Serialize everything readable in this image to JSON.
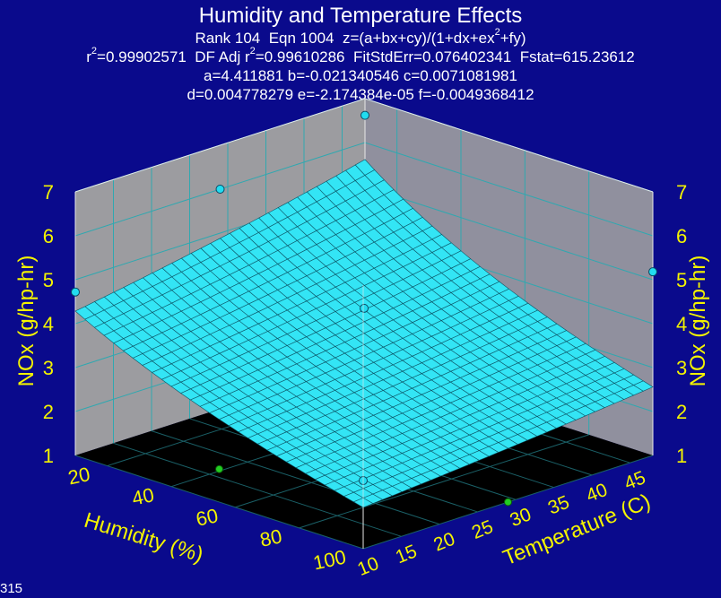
{
  "title": "Humidity and Temperature Effects",
  "rank_label": "Rank 104",
  "eqn_label": "Eqn 1004",
  "equation_prefix": "z=(a+bx+cy)/(1+dx+ex",
  "equation_exp": "2",
  "equation_suffix": "+fy)",
  "r2_label": "r",
  "r2_value": "=0.99902571",
  "adj_label": "DF Adj r",
  "adj_value": "=0.99610286",
  "fit_std_err": "FitStdErr=0.076402341",
  "fstat": "Fstat=615.23612",
  "coeffs_line1": "a=4.411881 b=-0.021340546 c=0.0071081981",
  "coeffs_line2": "d=0.004778279 e=-2.174384e-05 f=-0.0049368412",
  "corner_id": "315",
  "colors": {
    "background": "#0a0a8c",
    "wall": "#9c9ca0",
    "floor": "#000000",
    "surface": "#33e5f5",
    "grid_on_surface": "#0c5566",
    "axis_text": "#f4f400",
    "title_text": "#ffffff",
    "point_above": "#22dcf0",
    "point_below": "#22cc22"
  },
  "chart_data": {
    "type": "surface",
    "x_label": "Humidity (%)",
    "y_label": "Temperature (C)",
    "z_label": "NOx (g/hp-hr)",
    "x_range": [
      10,
      100
    ],
    "y_range": [
      10,
      48
    ],
    "z_range": [
      1,
      7
    ],
    "x_ticks": [
      "20",
      "40",
      "60",
      "80",
      "100"
    ],
    "y_ticks": [
      "10",
      "15",
      "20",
      "25",
      "30",
      "35",
      "40",
      "45"
    ],
    "z_ticks": [
      "1",
      "2",
      "3",
      "4",
      "5",
      "6",
      "7"
    ],
    "model": {
      "equation": "z=(a+bx+cy)/(1+dx+ex^2+fy)",
      "a": 4.411881,
      "b": -0.021340546,
      "c": 0.0071081981,
      "d": 0.004778279,
      "e": -2.174384e-05,
      "f": -0.0049368412
    },
    "data_points": [
      {
        "x": 10,
        "y": 10,
        "z": 4.72,
        "above": true
      },
      {
        "x": 100,
        "y": 10,
        "z": 2.55,
        "above": true
      },
      {
        "x": 10,
        "y": 48,
        "z": 6.62,
        "above": true
      },
      {
        "x": 100,
        "y": 48,
        "z": 5.18,
        "above": true
      },
      {
        "x": 55,
        "y": 10,
        "z": 1.75,
        "above": false
      },
      {
        "x": 100,
        "y": 29,
        "z": 1.0,
        "above": false
      },
      {
        "x": 55,
        "y": 29,
        "z": 4.35,
        "above": true
      },
      {
        "x": 10,
        "y": 29,
        "z": 6.0,
        "above": true
      }
    ]
  }
}
